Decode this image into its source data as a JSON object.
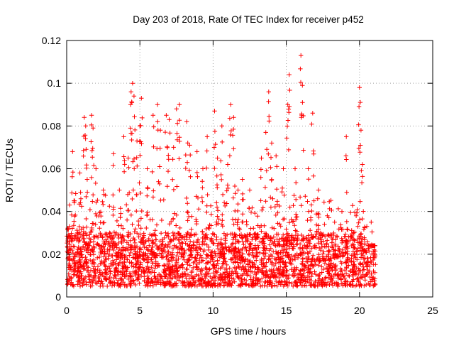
{
  "chart_data": {
    "type": "scatter",
    "title": "Day 203 of 2018, Rate Of TEC Index for receiver p452",
    "xlabel": "GPS time / hours",
    "ylabel": "ROTI / TECUs",
    "xlim": [
      0,
      25
    ],
    "ylim": [
      0,
      0.12
    ],
    "xticks": [
      0,
      5,
      10,
      15,
      20,
      25
    ],
    "yticks": [
      0,
      0.02,
      0.04,
      0.06,
      0.08,
      0.1,
      0.12
    ],
    "xtick_labels": [
      "0",
      "5",
      "10",
      "15",
      "20",
      "25"
    ],
    "ytick_labels": [
      "0",
      "0.02",
      "0.04",
      "0.06",
      "0.08",
      "0.1",
      "0.12"
    ],
    "grid": true,
    "marker": "+",
    "color": "#ff0000",
    "data_x_range": [
      0,
      21.1
    ],
    "dense_band": [
      0.005,
      0.03
    ],
    "points": [
      [
        0.2,
        0.033
      ],
      [
        0.4,
        0.068
      ],
      [
        0.5,
        0.045
      ],
      [
        0.9,
        0.058
      ],
      [
        1.2,
        0.084
      ],
      [
        1.3,
        0.08
      ],
      [
        1.4,
        0.055
      ],
      [
        1.7,
        0.085
      ],
      [
        1.8,
        0.079
      ],
      [
        2.0,
        0.06
      ],
      [
        2.5,
        0.05
      ],
      [
        3.2,
        0.067
      ],
      [
        3.6,
        0.05
      ],
      [
        3.9,
        0.075
      ],
      [
        4.2,
        0.065
      ],
      [
        4.4,
        0.096
      ],
      [
        4.5,
        0.1
      ],
      [
        4.6,
        0.094
      ],
      [
        4.8,
        0.073
      ],
      [
        5.0,
        0.08
      ],
      [
        5.1,
        0.093
      ],
      [
        5.5,
        0.06
      ],
      [
        5.9,
        0.085
      ],
      [
        6.2,
        0.09
      ],
      [
        6.4,
        0.078
      ],
      [
        6.8,
        0.085
      ],
      [
        7.0,
        0.083
      ],
      [
        7.3,
        0.07
      ],
      [
        7.5,
        0.088
      ],
      [
        7.7,
        0.09
      ],
      [
        8.2,
        0.082
      ],
      [
        8.4,
        0.071
      ],
      [
        8.9,
        0.068
      ],
      [
        9.3,
        0.06
      ],
      [
        9.6,
        0.075
      ],
      [
        10.1,
        0.087
      ],
      [
        10.3,
        0.065
      ],
      [
        10.6,
        0.08
      ],
      [
        11.0,
        0.062
      ],
      [
        11.2,
        0.09
      ],
      [
        11.4,
        0.084
      ],
      [
        11.7,
        0.05
      ],
      [
        12.0,
        0.055
      ],
      [
        12.5,
        0.05
      ],
      [
        13.3,
        0.065
      ],
      [
        13.6,
        0.077
      ],
      [
        13.8,
        0.096
      ],
      [
        14.0,
        0.072
      ],
      [
        14.3,
        0.066
      ],
      [
        14.8,
        0.06
      ],
      [
        15.1,
        0.09
      ],
      [
        15.2,
        0.104
      ],
      [
        15.6,
        0.06
      ],
      [
        16.0,
        0.113
      ],
      [
        16.1,
        0.099
      ],
      [
        16.5,
        0.06
      ],
      [
        16.8,
        0.086
      ],
      [
        17.2,
        0.05
      ],
      [
        17.8,
        0.038
      ],
      [
        18.3,
        0.035
      ],
      [
        18.8,
        0.04
      ],
      [
        19.1,
        0.075
      ],
      [
        19.6,
        0.03
      ],
      [
        20.0,
        0.098
      ],
      [
        20.1,
        0.078
      ],
      [
        20.2,
        0.062
      ],
      [
        20.5,
        0.033
      ],
      [
        20.8,
        0.035
      ],
      [
        21.0,
        0.022
      ]
    ]
  }
}
